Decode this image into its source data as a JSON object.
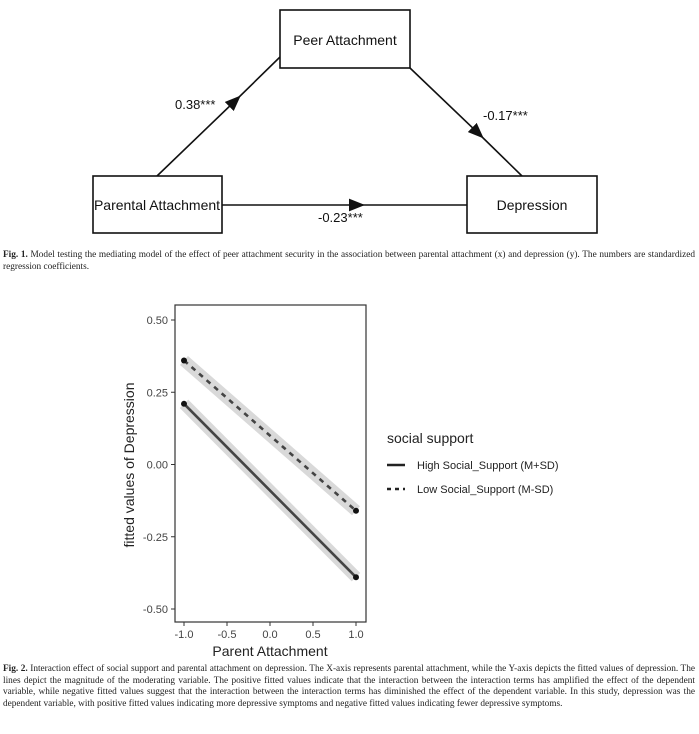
{
  "figure1": {
    "nodes": {
      "mediator": "Peer Attachment",
      "x": "Parental Attachment",
      "y": "Depression"
    },
    "paths": {
      "a": "0.38***",
      "b": "-0.17***",
      "c": "-0.23***"
    },
    "caption_label": "Fig. 1.",
    "caption_text": " Model testing the mediating model of the effect of peer attachment security in the association between parental attachment (x) and depression (y). The numbers are standardized regression coefficients."
  },
  "figure2": {
    "caption_label": "Fig. 2.",
    "caption_text": " Interaction effect of social support and parental attachment on depression. The X-axis represents parental attachment, while the Y-axis depicts the fitted values of depression. The lines depict the magnitude of the moderating variable. The positive fitted values indicate that the interaction between the interaction terms has amplified the effect of the dependent variable, while negative fitted values suggest that the interaction between the interaction terms has diminished the effect of the dependent variable. In this study, depression was the dependent variable, with positive fitted values indicating more depressive symptoms and negative fitted values indicating fewer depressive symptoms."
  },
  "chart_data": {
    "type": "line",
    "xlabel": "Parent Attachment",
    "ylabel": "fitted values of Depression",
    "xlim": [
      -1.1,
      1.1
    ],
    "ylim": [
      -0.53,
      0.53
    ],
    "xticks": [
      "-1.0",
      "-0.5",
      "0.0",
      "0.5",
      "1.0"
    ],
    "yticks": [
      "0.50",
      "0.25",
      "0.00",
      "-0.25",
      "-0.50"
    ],
    "grid": false,
    "legend": {
      "title": "social support",
      "placement": "right"
    },
    "series": [
      {
        "name": "High Social_Support (M+SD)",
        "style": "solid",
        "x": [
          -1.0,
          1.0
        ],
        "y": [
          0.21,
          -0.39
        ]
      },
      {
        "name": "Low Social_Support (M-SD)",
        "style": "dashed",
        "x": [
          -1.0,
          1.0
        ],
        "y": [
          0.36,
          -0.16
        ]
      }
    ],
    "colors": {
      "line": "#444444",
      "ribbon": "#d9d9d9"
    }
  }
}
